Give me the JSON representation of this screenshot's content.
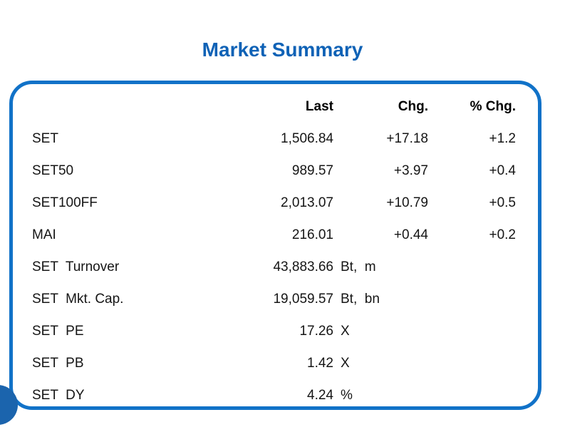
{
  "title": "Market Summary",
  "colors": {
    "accent": "#1172C8",
    "title_blue": "#0F62B6",
    "circle_blue": "#1B64AD",
    "text": "#151515"
  },
  "table": {
    "headers": [
      "Last",
      "Chg.",
      "% Chg."
    ],
    "rows": [
      {
        "label": "SET",
        "last": "1,506.84",
        "suffix": "",
        "chg": "+17.18",
        "pchg": "+1.2"
      },
      {
        "label": "SET50",
        "last": "989.57",
        "suffix": "",
        "chg": "+3.97",
        "pchg": "+0.4"
      },
      {
        "label": "SET100FF",
        "last": "2,013.07",
        "suffix": "",
        "chg": "+10.79",
        "pchg": "+0.5"
      },
      {
        "label": "MAI",
        "last": "216.01",
        "suffix": "",
        "chg": "+0.44",
        "pchg": "+0.2"
      },
      {
        "label": "SET  Turnover",
        "last": "43,883.66",
        "suffix": "Bt,  m",
        "chg": "",
        "pchg": ""
      },
      {
        "label": "SET  Mkt. Cap.",
        "last": "19,059.57",
        "suffix": "Bt,  bn",
        "chg": "",
        "pchg": ""
      },
      {
        "label": "SET  PE",
        "last": "17.26",
        "suffix": "X",
        "chg": "",
        "pchg": ""
      },
      {
        "label": "SET  PB",
        "last": "1.42",
        "suffix": "X",
        "chg": "",
        "pchg": ""
      },
      {
        "label": "SET  DY",
        "last": "4.24",
        "suffix": "%",
        "chg": "",
        "pchg": ""
      }
    ]
  },
  "chart_data": {
    "type": "table",
    "title": "Market Summary",
    "columns": [
      "",
      "Last",
      "Chg.",
      "% Chg."
    ],
    "rows": [
      [
        "SET",
        1506.84,
        17.18,
        1.2
      ],
      [
        "SET50",
        989.57,
        3.97,
        0.4
      ],
      [
        "SET100FF",
        2013.07,
        10.79,
        0.5
      ],
      [
        "MAI",
        216.01,
        0.44,
        0.2
      ],
      [
        "SET Turnover",
        "43,883.66 Bt, m",
        null,
        null
      ],
      [
        "SET Mkt. Cap.",
        "19,059.57 Bt, bn",
        null,
        null
      ],
      [
        "SET PE",
        "17.26 X",
        null,
        null
      ],
      [
        "SET PB",
        "1.42 X",
        null,
        null
      ],
      [
        "SET DY",
        "4.24 %",
        null,
        null
      ]
    ]
  }
}
